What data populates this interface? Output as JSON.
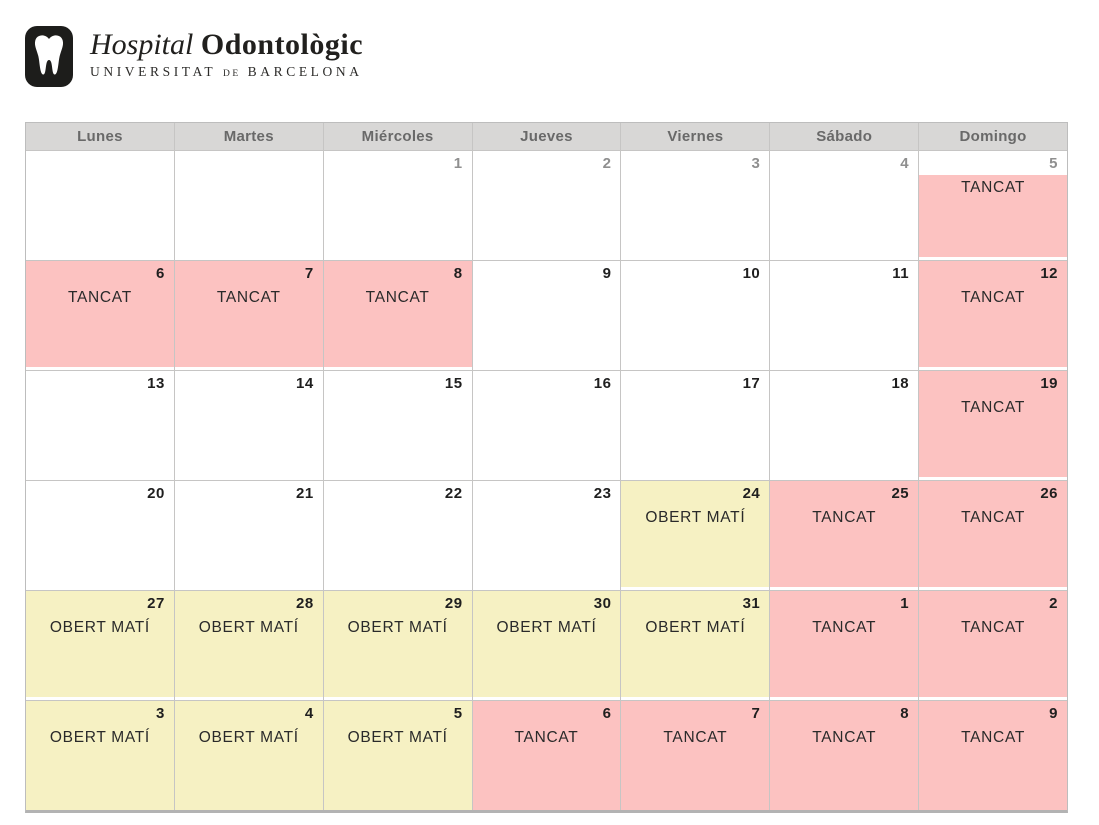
{
  "logo": {
    "icon": "tooth-icon",
    "title_italic": "Hospital",
    "title_bold": "Odontològic",
    "subtitle_part1": "UNIVERSITAT",
    "subtitle_de": "DE",
    "subtitle_part2": "BARCELONA"
  },
  "calendar": {
    "day_headers": [
      "Lunes",
      "Martes",
      "Miércoles",
      "Jueves",
      "Viernes",
      "Sábado",
      "Domingo"
    ],
    "status_labels": {
      "tancat": "TANCAT",
      "obert": "OBERT MATÍ"
    },
    "colors": {
      "tancat_bg": "#fcc2c1",
      "obert_bg": "#f6f1c3",
      "header_bg": "#d8d7d6",
      "header_text": "#696969",
      "grid_border": "#bdbdbd",
      "day_number": "#1f1f1f",
      "day_number_muted": "#8f8f8f"
    },
    "weeks": [
      [
        {
          "day": ""
        },
        {
          "day": ""
        },
        {
          "day": "1",
          "muted": true
        },
        {
          "day": "2",
          "muted": true
        },
        {
          "day": "3",
          "muted": true
        },
        {
          "day": "4",
          "muted": true
        },
        {
          "day": "5",
          "muted": true,
          "status": "tancat",
          "block_below_number": true
        }
      ],
      [
        {
          "day": "6",
          "status": "tancat"
        },
        {
          "day": "7",
          "status": "tancat"
        },
        {
          "day": "8",
          "status": "tancat"
        },
        {
          "day": "9"
        },
        {
          "day": "10"
        },
        {
          "day": "11"
        },
        {
          "day": "12",
          "status": "tancat"
        }
      ],
      [
        {
          "day": "13"
        },
        {
          "day": "14"
        },
        {
          "day": "15"
        },
        {
          "day": "16"
        },
        {
          "day": "17"
        },
        {
          "day": "18"
        },
        {
          "day": "19",
          "status": "tancat"
        }
      ],
      [
        {
          "day": "20"
        },
        {
          "day": "21"
        },
        {
          "day": "22"
        },
        {
          "day": "23"
        },
        {
          "day": "24",
          "status": "obert"
        },
        {
          "day": "25",
          "status": "tancat"
        },
        {
          "day": "26",
          "status": "tancat"
        }
      ],
      [
        {
          "day": "27",
          "status": "obert"
        },
        {
          "day": "28",
          "status": "obert"
        },
        {
          "day": "29",
          "status": "obert"
        },
        {
          "day": "30",
          "status": "obert"
        },
        {
          "day": "31",
          "status": "obert"
        },
        {
          "day": "1",
          "status": "tancat"
        },
        {
          "day": "2",
          "status": "tancat"
        }
      ],
      [
        {
          "day": "3",
          "status": "obert"
        },
        {
          "day": "4",
          "status": "obert"
        },
        {
          "day": "5",
          "status": "obert"
        },
        {
          "day": "6",
          "status": "tancat"
        },
        {
          "day": "7",
          "status": "tancat"
        },
        {
          "day": "8",
          "status": "tancat"
        },
        {
          "day": "9",
          "status": "tancat"
        }
      ]
    ]
  }
}
